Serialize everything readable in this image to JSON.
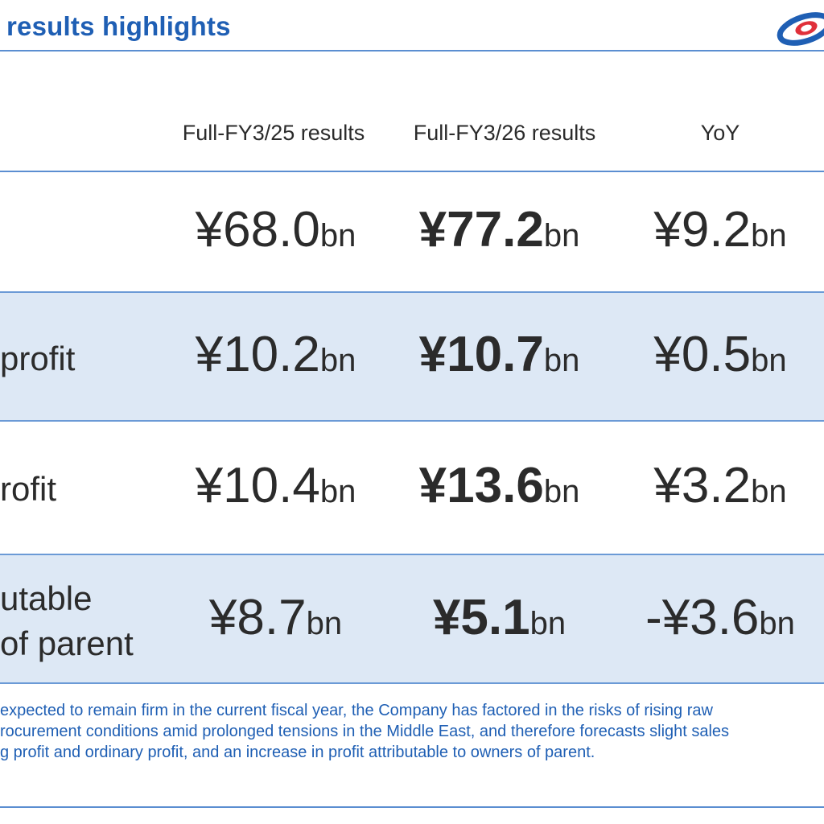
{
  "header": {
    "title": "results highlights"
  },
  "table": {
    "columns": [
      "Full-FY3/25 results",
      "Full-FY3/26 results",
      "YoY"
    ],
    "rows": [
      {
        "label": "",
        "label_line2": "",
        "fy25": {
          "num": "¥68.0",
          "unit": "bn"
        },
        "fy26": {
          "num": "¥77.2",
          "unit": "bn"
        },
        "yoy": {
          "num": "¥9.2",
          "unit": "bn"
        }
      },
      {
        "label": "profit",
        "label_line2": "",
        "fy25": {
          "num": "¥10.2",
          "unit": "bn"
        },
        "fy26": {
          "num": "¥10.7",
          "unit": "bn"
        },
        "yoy": {
          "num": "¥0.5",
          "unit": "bn"
        }
      },
      {
        "label": "rofit",
        "label_line2": "",
        "fy25": {
          "num": "¥10.4",
          "unit": "bn"
        },
        "fy26": {
          "num": "¥13.6",
          "unit": "bn"
        },
        "yoy": {
          "num": "¥3.2",
          "unit": "bn"
        }
      },
      {
        "label": "utable",
        "label_line2": "of parent",
        "fy25": {
          "num": "¥8.7",
          "unit": "bn"
        },
        "fy26": {
          "num": "¥5.1",
          "unit": "bn"
        },
        "yoy": {
          "num": "-¥3.6",
          "unit": "bn"
        }
      }
    ]
  },
  "note": {
    "lines": [
      " expected to remain firm in the current fiscal year, the Company has factored in the risks of rising raw",
      "rocurement conditions amid prolonged tensions in the Middle East, and therefore forecasts slight sales",
      "g profit and ordinary profit, and an increase in profit attributable to owners of parent."
    ]
  },
  "colors": {
    "accent": "#1f5fb4",
    "rule": "#5b8ed1",
    "shade": "#dde8f5",
    "logo_red": "#e0303a"
  }
}
